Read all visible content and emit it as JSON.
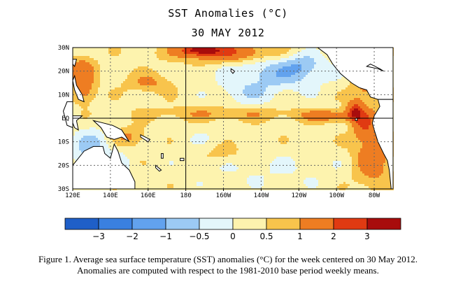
{
  "header": {
    "title": "SST Anomalies (°C)",
    "date": "30 MAY 2012"
  },
  "chart_data": {
    "type": "heatmap",
    "title": "SST Anomalies (°C)",
    "subtitle": "30 MAY 2012",
    "x_ticks": [
      "120E",
      "140E",
      "160E",
      "180",
      "160W",
      "140W",
      "120W",
      "100W",
      "80W"
    ],
    "x_tick_lon": [
      120,
      140,
      160,
      180,
      200,
      220,
      240,
      260,
      280
    ],
    "y_ticks": [
      "30N",
      "20N",
      "10N",
      "EQ",
      "10S",
      "20S",
      "30S"
    ],
    "y_tick_lat": [
      30,
      20,
      10,
      0,
      -10,
      -20,
      -30
    ],
    "xlim_lon": [
      120,
      290
    ],
    "ylim_lat": [
      -30,
      30
    ],
    "grid": "dotted",
    "colorbar": {
      "labels": [
        "-3",
        "-2",
        "-1",
        "-0.5",
        "0",
        "0.5",
        "1",
        "2",
        "3"
      ],
      "bounds": [
        -4,
        -3,
        -2,
        -1,
        -0.5,
        0,
        0.5,
        1,
        2,
        3,
        4
      ],
      "colors": [
        "#1f5fc8",
        "#3a80e0",
        "#62a2ee",
        "#9ccaf4",
        "#e3f6fb",
        "#fdf3ae",
        "#f8c44c",
        "#ee7d22",
        "#e03a12",
        "#a80c0c"
      ]
    },
    "anomaly_features": [
      {
        "lon": 228,
        "lat": 19,
        "rlon": 26,
        "rlat": 7,
        "value": -1.1
      },
      {
        "lon": 242,
        "lat": 23,
        "rlon": 10,
        "rlat": 5,
        "value": -0.7
      },
      {
        "lon": 212,
        "lat": 10,
        "rlon": 16,
        "rlat": 5,
        "value": -0.6
      },
      {
        "lon": 130,
        "lat": -13,
        "rlon": 10,
        "rlat": 8,
        "value": -1.1
      },
      {
        "lon": 145,
        "lat": -20,
        "rlon": 6,
        "rlat": 5,
        "value": -0.6
      },
      {
        "lon": 225,
        "lat": -22,
        "rlon": 45,
        "rlat": 7,
        "value": -0.3
      },
      {
        "lon": 190,
        "lat": -8,
        "rlon": 14,
        "rlat": 5,
        "value": -0.2
      },
      {
        "lon": 200,
        "lat": 2,
        "rlon": 40,
        "rlat": 3,
        "value": 0.7
      },
      {
        "lon": 258,
        "lat": 1,
        "rlon": 16,
        "rlat": 2.5,
        "value": 1.2
      },
      {
        "lon": 270,
        "lat": 3,
        "rlon": 4,
        "rlat": 4,
        "value": 2.3
      },
      {
        "lon": 275,
        "lat": -3,
        "rlon": 6,
        "rlat": 6,
        "value": 1.5
      },
      {
        "lon": 279,
        "lat": -18,
        "rlon": 10,
        "rlat": 12,
        "value": 1.2
      },
      {
        "lon": 277,
        "lat": 15,
        "rlon": 9,
        "rlat": 9,
        "value": 1.1
      },
      {
        "lon": 200,
        "lat": 28,
        "rlon": 25,
        "rlat": 4,
        "value": 1.8
      },
      {
        "lon": 188,
        "lat": 29,
        "rlon": 10,
        "rlat": 2,
        "value": 2.4
      },
      {
        "lon": 125,
        "lat": 20,
        "rlon": 7,
        "rlat": 6,
        "value": 1.3
      },
      {
        "lon": 126,
        "lat": 11,
        "rlon": 6,
        "rlat": 5,
        "value": 1.0
      },
      {
        "lon": 160,
        "lat": 15,
        "rlon": 12,
        "rlat": 4,
        "value": 0.8
      },
      {
        "lon": 150,
        "lat": -8,
        "rlon": 9,
        "rlat": 4,
        "value": 0.8
      },
      {
        "lon": 200,
        "lat": -15,
        "rlon": 10,
        "rlat": 4,
        "value": 0.5
      }
    ]
  },
  "caption": {
    "line1": "Figure 1. Average sea surface temperature (SST) anomalies (°C) for the week centered on 30 May 2012.",
    "line2": "Anomalies are computed with respect to the 1981-2010 base period weekly means."
  }
}
